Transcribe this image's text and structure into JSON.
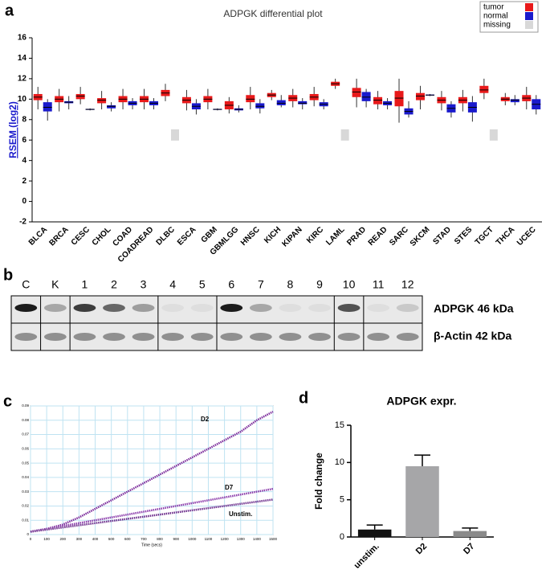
{
  "panels": [
    "a",
    "b",
    "c",
    "d"
  ],
  "blot": {
    "lanes": [
      "C",
      "K",
      "1",
      "2",
      "3",
      "4",
      "5",
      "6",
      "7",
      "8",
      "9",
      "10",
      "11",
      "12"
    ],
    "rows": [
      "ADPGK 46 kDa",
      "β-Actin 42 kDa"
    ]
  },
  "chart_data": [
    {
      "type": "box",
      "title": "ADPGK differential plot",
      "y_label": "RSEM (log2)",
      "categories": [
        "BLCA",
        "BRCA",
        "CESC",
        "CHOL",
        "COAD",
        "COADREAD",
        "DLBC",
        "ESCA",
        "GBM",
        "GBMLGG",
        "HNSC",
        "KICH",
        "KIPAN",
        "KIRC",
        "LAML",
        "PRAD",
        "READ",
        "SARC",
        "SKCM",
        "STAD",
        "STES",
        "TGCT",
        "THCA",
        "UCEC"
      ],
      "series": [
        {
          "name": "tumor",
          "color": "#e8191a",
          "median": [
            10.2,
            10.0,
            10.3,
            9.9,
            10.0,
            10.0,
            10.6,
            9.9,
            10.0,
            9.4,
            10.0,
            10.4,
            10.1,
            10.2,
            11.5,
            10.7,
            9.9,
            10.1,
            10.3,
            9.9,
            9.9,
            10.9,
            10.0,
            10.1
          ],
          "q1": [
            9.9,
            9.7,
            10.0,
            9.6,
            9.7,
            9.7,
            10.3,
            9.6,
            9.7,
            9.0,
            9.7,
            10.2,
            9.8,
            9.9,
            11.3,
            10.2,
            9.5,
            9.3,
            9.9,
            9.6,
            9.6,
            10.6,
            9.8,
            9.8
          ],
          "q3": [
            10.5,
            10.3,
            10.5,
            10.1,
            10.3,
            10.3,
            10.9,
            10.2,
            10.3,
            9.8,
            10.4,
            10.6,
            10.4,
            10.5,
            11.7,
            11.1,
            10.2,
            10.8,
            10.6,
            10.2,
            10.2,
            11.3,
            10.2,
            10.4
          ],
          "low": [
            9.0,
            8.8,
            9.5,
            9.0,
            9.0,
            9.0,
            9.8,
            8.9,
            9.0,
            8.6,
            9.0,
            9.9,
            9.2,
            9.3,
            11.0,
            9.2,
            9.0,
            7.7,
            9.0,
            8.9,
            8.8,
            10.0,
            9.4,
            9.0
          ],
          "high": [
            11.2,
            11.0,
            11.2,
            10.8,
            11.0,
            11.0,
            11.5,
            10.9,
            11.0,
            10.2,
            11.2,
            10.9,
            11.0,
            11.2,
            12.0,
            12.0,
            10.8,
            12.0,
            11.3,
            10.8,
            10.9,
            12.0,
            10.6,
            11.2
          ]
        },
        {
          "name": "normal",
          "color": "#1a1acc",
          "median": [
            9.2,
            9.7,
            9.0,
            9.3,
            9.6,
            9.6,
            null,
            9.3,
            9.0,
            9.0,
            9.3,
            9.6,
            9.6,
            9.5,
            null,
            10.2,
            9.6,
            8.8,
            10.4,
            9.1,
            9.2,
            null,
            9.9,
            9.5
          ],
          "q1": [
            8.8,
            9.6,
            8.95,
            9.1,
            9.4,
            9.4,
            null,
            9.0,
            8.95,
            8.9,
            9.1,
            9.4,
            9.5,
            9.3,
            null,
            9.8,
            9.4,
            8.5,
            10.35,
            8.7,
            8.7,
            null,
            9.7,
            9.0
          ],
          "q3": [
            9.7,
            9.8,
            9.05,
            9.4,
            9.8,
            9.8,
            null,
            9.6,
            9.05,
            9.1,
            9.6,
            9.9,
            9.8,
            9.7,
            null,
            10.7,
            9.8,
            9.1,
            10.45,
            9.5,
            9.7,
            null,
            10.0,
            10.0
          ],
          "low": [
            7.9,
            9.0,
            8.9,
            8.8,
            9.0,
            9.0,
            null,
            8.5,
            8.9,
            8.7,
            8.6,
            9.2,
            9.0,
            9.0,
            null,
            9.2,
            9.0,
            8.2,
            10.3,
            8.2,
            7.8,
            null,
            9.4,
            8.5
          ],
          "high": [
            10.0,
            10.3,
            9.1,
            9.7,
            10.1,
            10.1,
            null,
            10.0,
            9.1,
            9.4,
            10.0,
            10.4,
            10.1,
            10.0,
            null,
            11.0,
            10.1,
            9.8,
            10.5,
            9.8,
            10.3,
            null,
            10.4,
            10.4
          ]
        }
      ],
      "missing": {
        "name": "missing",
        "color": "#d8d8d8"
      },
      "ylim": [
        -2,
        16
      ],
      "yticks": [
        -2,
        0,
        2,
        4,
        6,
        8,
        10,
        12,
        14,
        16
      ],
      "legend": "top-right"
    },
    {
      "type": "line",
      "x_label": "Time (secs)",
      "x": [
        0,
        100,
        200,
        300,
        400,
        500,
        600,
        700,
        800,
        900,
        1000,
        1100,
        1200,
        1300,
        1400,
        1500
      ],
      "series": [
        {
          "name": "D2",
          "color": "#7a2a9a",
          "values": [
            0.002,
            0.004,
            0.007,
            0.012,
            0.018,
            0.024,
            0.03,
            0.036,
            0.042,
            0.048,
            0.054,
            0.06,
            0.066,
            0.072,
            0.08,
            0.086
          ]
        },
        {
          "name": "D7",
          "color": "#8a3aaa",
          "values": [
            0.002,
            0.004,
            0.006,
            0.008,
            0.01,
            0.012,
            0.014,
            0.016,
            0.018,
            0.02,
            0.022,
            0.024,
            0.026,
            0.028,
            0.03,
            0.032
          ]
        },
        {
          "name": "Unstim.",
          "color": "#6a2a8a",
          "values": [
            0.002,
            0.0035,
            0.005,
            0.0065,
            0.008,
            0.0095,
            0.011,
            0.0125,
            0.014,
            0.0155,
            0.017,
            0.0185,
            0.02,
            0.0215,
            0.023,
            0.0245
          ]
        }
      ],
      "xlim": [
        0,
        1500
      ],
      "xticks": [
        0,
        100,
        200,
        300,
        400,
        500,
        600,
        700,
        800,
        900,
        1000,
        1100,
        1200,
        1300,
        1400,
        1500
      ],
      "ylim": [
        0,
        0.09
      ],
      "yticks": [
        0,
        0.01,
        0.02,
        0.03,
        0.04,
        0.05,
        0.06,
        0.07,
        0.08,
        0.09
      ],
      "grid": true
    },
    {
      "type": "bar",
      "title": "ADPGK expr.",
      "y_label": "Fold change",
      "categories": [
        "unstim.",
        "D2",
        "D7"
      ],
      "values": [
        1.0,
        9.5,
        0.8
      ],
      "errors": [
        0.6,
        1.5,
        0.4
      ],
      "colors": [
        "#111111",
        "#a6a6a8",
        "#8a8a8a"
      ],
      "ylim": [
        0,
        15
      ],
      "yticks": [
        0,
        5,
        10,
        15
      ]
    }
  ]
}
